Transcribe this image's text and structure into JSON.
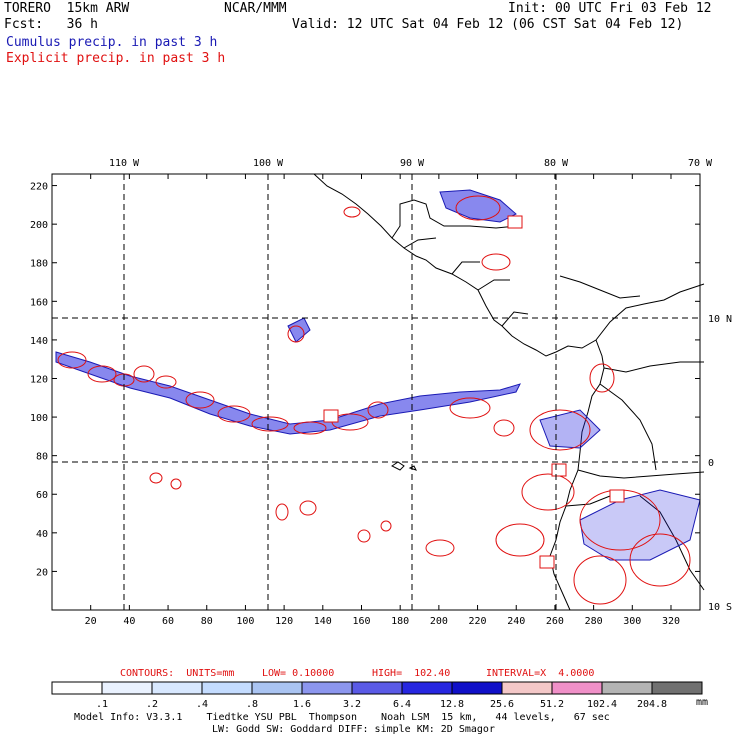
{
  "header": {
    "model": "TORERO  15km ARW",
    "org": "NCAR/MMM",
    "init": "Init: 00 UTC Fri 03 Feb 12",
    "fcst": "Fcst:   36 h",
    "valid": "Valid: 12 UTC Sat 04 Feb 12 (06 CST Sat 04 Feb 12)",
    "cumulus_label": "Cumulus precip. in past 3 h",
    "explicit_label": "Explicit precip. in past 3 h"
  },
  "colors": {
    "cumulus": "#1a1ab4",
    "explicit": "#e01010",
    "cumulus_fill": [
      "#ffffff",
      "#eaf2ff",
      "#d8e8ff",
      "#c4dcff",
      "#aac4f2",
      "#8c96ee",
      "#5a5ae6",
      "#2626e0",
      "#1010c8"
    ],
    "explicit_fill": [
      "#f4c8c8",
      "#f090c8",
      "#b4b4b4",
      "#707070",
      "#d4a8f0"
    ]
  },
  "contour_info": {
    "contours": "CONTOURS:  UNITS=mm",
    "low": "LOW= 0.10000",
    "high": "HIGH=  102.40",
    "interval": "INTERVAL=X  4.0000"
  },
  "chart_data": {
    "type": "map",
    "title": "Cumulus / Explicit precip. in past 3 h",
    "x_ticks": [
      "20",
      "40",
      "60",
      "80",
      "100",
      "120",
      "140",
      "160",
      "180",
      "200",
      "220",
      "240",
      "260",
      "280",
      "300",
      "320"
    ],
    "y_ticks": [
      "20",
      "40",
      "60",
      "80",
      "100",
      "120",
      "140",
      "160",
      "180",
      "200",
      "220"
    ],
    "xlim": [
      0,
      335
    ],
    "ylim": [
      0,
      226
    ],
    "lon_labels": [
      "110 W",
      "100 W",
      "90 W",
      "80 W",
      "70 W"
    ],
    "lat_labels": [
      "10 N",
      "0",
      "10 S"
    ],
    "grid": "dashed"
  },
  "legend": {
    "thresholds": [
      ".1",
      ".2",
      ".4",
      ".8",
      "1.6",
      "3.2",
      "6.4",
      "12.8",
      "25.6",
      "51.2",
      "102.4",
      "204.8"
    ],
    "units": "mm"
  },
  "footer": {
    "line1": "Model Info: V3.3.1    Tiedtke YSU PBL  Thompson    Noah LSM  15 km,   44 levels,   67 sec",
    "line2": "LW: Godd SW: Goddard DIFF: simple KM: 2D Smagor"
  }
}
